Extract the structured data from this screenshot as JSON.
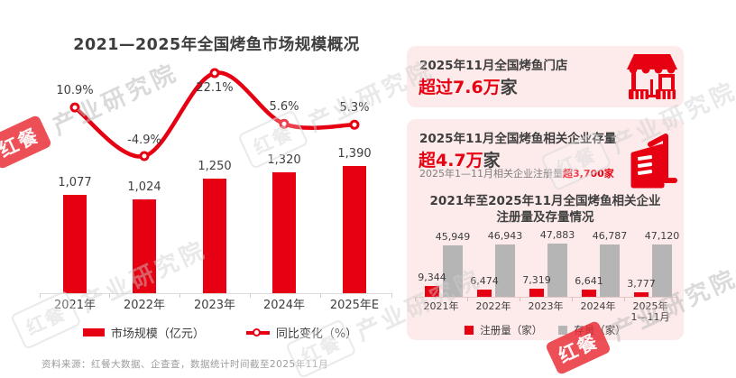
{
  "colors": {
    "red": "#e60012",
    "card_pink": "#fdeaea",
    "dark_text": "#3e3e3e",
    "gray_bar": "#b5b5b5",
    "note_gray": "#7f7f7f",
    "footer_gray": "#9c9c9c"
  },
  "watermark": {
    "brand": "红餐",
    "suffix": "产业研究院"
  },
  "chart_data": [
    {
      "type": "bar+line",
      "title": "2021—2025年全国烤鱼市场规模概况",
      "categories": [
        "2021年",
        "2022年",
        "2023年",
        "2024年",
        "2025年E"
      ],
      "series": [
        {
          "name": "市场规模（亿元）",
          "type": "bar",
          "color": "#e60012",
          "values": [
            1077,
            1024,
            1250,
            1320,
            1390
          ],
          "labels": [
            "1,077",
            "1,024",
            "1,250",
            "1,320",
            "1,390"
          ]
        },
        {
          "name": "同比变化（%）",
          "type": "line",
          "color": "#e60012",
          "values": [
            10.9,
            -4.9,
            22.1,
            5.6,
            5.3
          ],
          "labels": [
            "10.9%",
            "-4.9%",
            "22.1%",
            "5.6%",
            "5.3%"
          ]
        }
      ],
      "ylim": [
        0,
        1500
      ],
      "grid": false,
      "legend_position": "bottom"
    },
    {
      "type": "bar",
      "title": "2021年至2025年11月全国烤鱼相关企业注册量及存量情况",
      "title_lines": [
        "2021年至2025年11月全国烤鱼相关企业",
        "注册量及存量情况"
      ],
      "categories": [
        "2021年",
        "2022年",
        "2023年",
        "2024年",
        "2025年\n1—11月"
      ],
      "series": [
        {
          "name": "注册量（家）",
          "color": "#e60012",
          "values": [
            9344,
            6474,
            7319,
            6641,
            3777
          ],
          "labels": [
            "9,344",
            "6,474",
            "7,319",
            "6,641",
            "3,777"
          ]
        },
        {
          "name": "存量（家）",
          "color": "#b5b5b5",
          "values": [
            45949,
            46943,
            47883,
            46787,
            47120
          ],
          "labels": [
            "45,949",
            "46,943",
            "47,883",
            "46,787",
            "47,120"
          ]
        }
      ],
      "ylim": [
        0,
        50000
      ],
      "grid": false,
      "legend_position": "bottom"
    }
  ],
  "cards": [
    {
      "title": "2025年11月全国烤鱼门店",
      "highlight": "超过7.6万",
      "unit": "家",
      "icon": "storefront-icon"
    },
    {
      "title": "2025年11月全国烤鱼相关企业存量",
      "highlight": "超4.7万",
      "unit": "家",
      "note_prefix": "2025年1—11月相关企业注册量",
      "note_highlight": "超3,700家",
      "icon": "building-icon"
    }
  ],
  "footer": {
    "source": "资料来源：红餐大数据、企查查，数据统计时间截至2025年11月"
  }
}
